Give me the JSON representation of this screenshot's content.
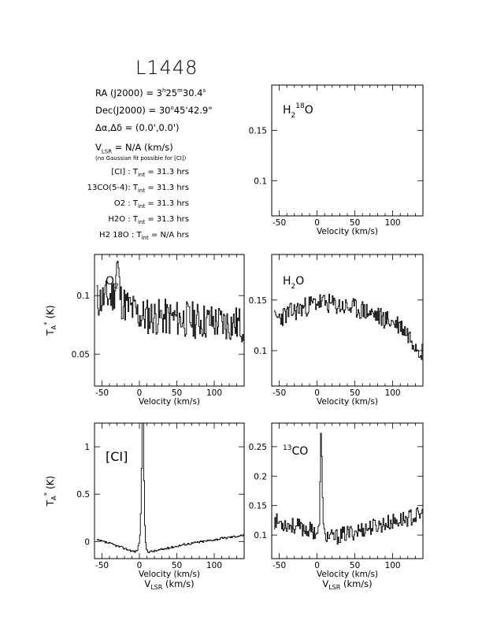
{
  "header": {
    "source": "L1448",
    "ra": {
      "label": "RA (J2000)",
      "eq": "=",
      "h": "3",
      "m": "25",
      "s": "30.4"
    },
    "dec": {
      "label": "Dec(J2000)",
      "eq": "=",
      "deg": "30",
      "arcmin": "45",
      "arcsec": "42.9"
    },
    "offset": {
      "label": "Δα,Δδ",
      "eq": "=",
      "value": "(0.0',0.0')"
    },
    "vlsr": {
      "label": "V",
      "sub": "LSR",
      "eq": "= N/A",
      "unit": "(km/s)"
    },
    "note": "(no Gaussian fit possible for [CI])",
    "integrations": [
      {
        "line": "[CI]",
        "value": "31.3 hrs"
      },
      {
        "line": "13CO(5-4)",
        "value": "31.3 hrs"
      },
      {
        "line": "O2",
        "value": "31.3 hrs"
      },
      {
        "line": "H2O",
        "value": "31.3 hrs"
      },
      {
        "line": "H2 18O",
        "value": "N/A hrs"
      }
    ],
    "tint_label": "T",
    "tint_sub": "int",
    "colon": ":",
    "equals": "="
  },
  "chart_data": [
    {
      "type": "line",
      "name": "H2 18O",
      "label": "H2 18O",
      "xlabel": "Velocity (km/s)",
      "ylabel": "",
      "xlim": [
        -60,
        140
      ],
      "ylim": [
        0.065,
        0.195
      ],
      "xticks": [
        -50,
        0,
        50,
        100
      ],
      "yticks": [
        0.1,
        0.15
      ],
      "seed": 0,
      "series": []
    },
    {
      "type": "line",
      "name": "O2",
      "label": "O2",
      "xlabel": "Velocity (km/s)",
      "ylabel": "T_A* (K)",
      "xlim": [
        -60,
        140
      ],
      "ylim": [
        0.023,
        0.135
      ],
      "xticks": [
        -50,
        0,
        50,
        100
      ],
      "yticks": [
        0.05,
        0.1
      ],
      "seed": 11,
      "series": [
        {
          "name": "O2",
          "profile": {
            "base": [
              [
                -60,
                0.095
              ],
              [
                -35,
                0.1
              ],
              [
                0,
                0.083
              ],
              [
                60,
                0.08
              ],
              [
                140,
                0.075
              ]
            ],
            "noise": 0.016,
            "peaks": [
              {
                "v": -30,
                "a": 0.03,
                "w": 2
              }
            ]
          }
        }
      ]
    },
    {
      "type": "line",
      "name": "H2O",
      "label": "H2O",
      "xlabel": "Velocity (km/s)",
      "ylabel": "",
      "xlim": [
        -60,
        140
      ],
      "ylim": [
        0.065,
        0.195
      ],
      "xticks": [
        -50,
        0,
        50,
        100
      ],
      "yticks": [
        0.1,
        0.15
      ],
      "seed": 23,
      "series": [
        {
          "name": "H2O",
          "profile": {
            "base": [
              [
                -60,
                0.13
              ],
              [
                0,
                0.148
              ],
              [
                60,
                0.14
              ],
              [
                110,
                0.125
              ],
              [
                140,
                0.098
              ]
            ],
            "noise": 0.01,
            "peaks": []
          }
        }
      ]
    },
    {
      "type": "line",
      "name": "[CI]",
      "label": "[CI]",
      "xlabel": "Velocity (km/s)",
      "xlabel2": "V_LSR (km/s)",
      "ylabel": "T_A* (K)",
      "xlim": [
        -60,
        140
      ],
      "ylim": [
        -0.18,
        1.25
      ],
      "xticks": [
        -50,
        0,
        50,
        100
      ],
      "yticks": [
        0,
        0.5,
        1
      ],
      "seed": 37,
      "series": [
        {
          "name": "[CI]",
          "profile": {
            "base": [
              [
                -60,
                0.02
              ],
              [
                -40,
                -0.02
              ],
              [
                -10,
                -0.1
              ],
              [
                0,
                -0.12
              ],
              [
                20,
                -0.1
              ],
              [
                60,
                -0.03
              ],
              [
                140,
                0.07
              ]
            ],
            "noise": 0.012,
            "peaks": [
              {
                "v": 4,
                "a": 1.25,
                "w": 1.4
              },
              {
                "v": 3,
                "a": 0.25,
                "w": 3
              }
            ]
          }
        }
      ]
    },
    {
      "type": "line",
      "name": "13CO",
      "label": "13CO",
      "xlabel": "Velocity (km/s)",
      "xlabel2": "V_LSR (km/s)",
      "ylabel": "",
      "xlim": [
        -60,
        140
      ],
      "ylim": [
        0.06,
        0.29
      ],
      "xticks": [
        -50,
        0,
        50,
        100
      ],
      "yticks": [
        0.1,
        0.15,
        0.2,
        0.25
      ],
      "seed": 53,
      "series": [
        {
          "name": "13CO",
          "profile": {
            "base": [
              [
                -60,
                0.125
              ],
              [
                0,
                0.105
              ],
              [
                20,
                0.095
              ],
              [
                60,
                0.11
              ],
              [
                140,
                0.135
              ]
            ],
            "noise": 0.014,
            "peaks": [
              {
                "v": 5,
                "a": 0.17,
                "w": 1.2
              }
            ]
          }
        }
      ]
    }
  ]
}
